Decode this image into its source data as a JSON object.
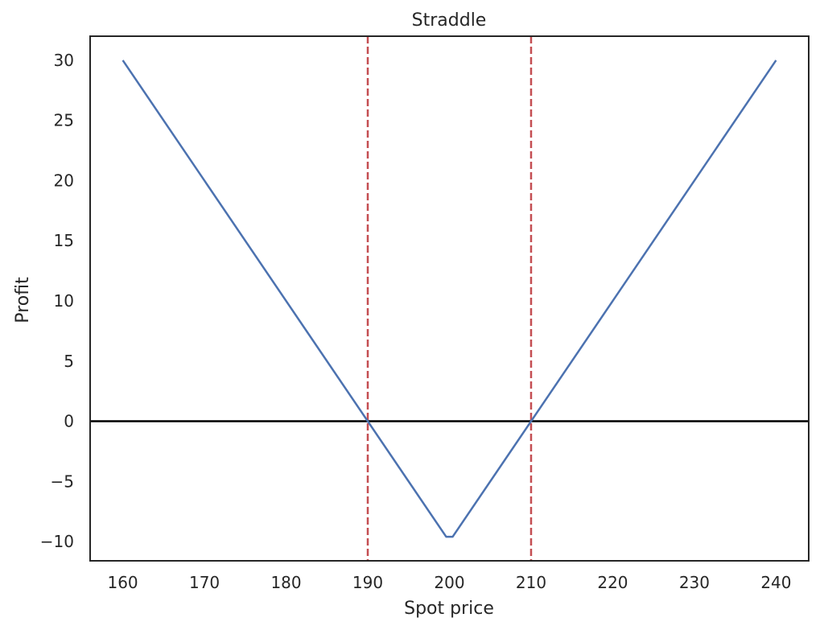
{
  "chart_data": {
    "type": "line",
    "title": "Straddle",
    "xlabel": "Spot price",
    "ylabel": "Profit",
    "xlim": [
      156,
      244
    ],
    "ylim": [
      -11.6,
      32
    ],
    "xticks": [
      160,
      170,
      180,
      190,
      200,
      210,
      220,
      230,
      240
    ],
    "yticks": [
      30,
      25,
      20,
      15,
      10,
      5,
      0,
      -5,
      -10
    ],
    "xtick_labels": [
      "160",
      "170",
      "180",
      "190",
      "200",
      "210",
      "220",
      "230",
      "240"
    ],
    "ytick_labels": [
      "30",
      "25",
      "20",
      "15",
      "10",
      "5",
      "0",
      "−5",
      "−10"
    ],
    "grid": false,
    "series": [
      {
        "x": [
          160,
          199.6,
          200.4,
          240
        ],
        "y": [
          30,
          -9.6,
          -9.6,
          30
        ],
        "color": "#4c72b0"
      }
    ],
    "hlines": [
      {
        "y": 0,
        "color": "#000000"
      }
    ],
    "vlines": [
      {
        "x": 190,
        "color": "#c44e52",
        "style": "dashed"
      },
      {
        "x": 210,
        "color": "#c44e52",
        "style": "dashed"
      }
    ]
  }
}
